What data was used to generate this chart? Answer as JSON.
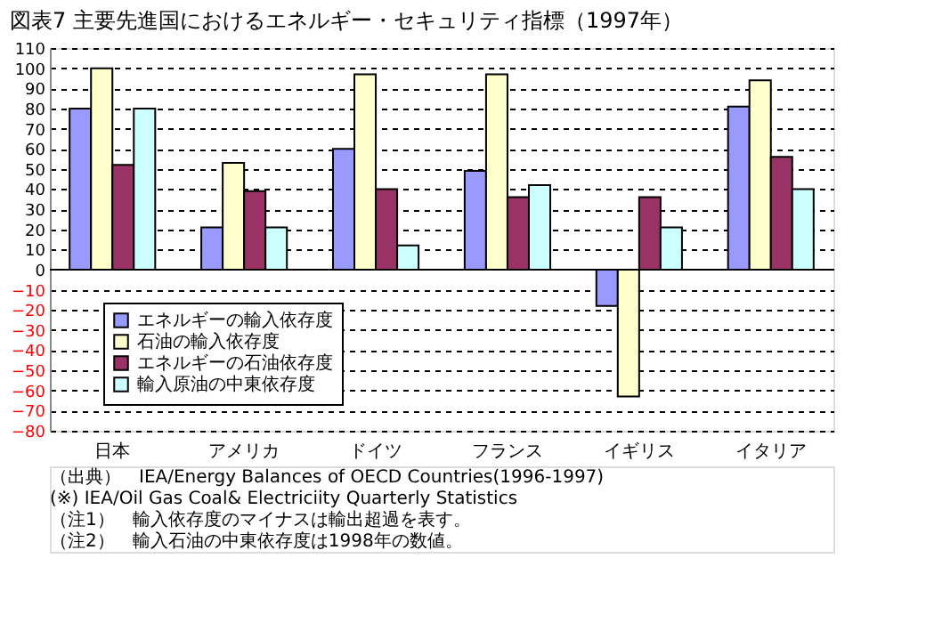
{
  "chart_data": {
    "type": "bar",
    "title": "図表7 主要先進国におけるエネルギー・セキュリティ指標（1997年）",
    "categories": [
      "日本",
      "アメリカ",
      "ドイツ",
      "フランス",
      "イギリス",
      "イタリア"
    ],
    "series": [
      {
        "name": "エネルギーの輸入依存度",
        "color": "#9999ff",
        "values": [
          80,
          21,
          60,
          49,
          -18,
          81
        ]
      },
      {
        "name": "石油の輸入依存度",
        "color": "#ffffcc",
        "values": [
          100,
          53,
          97,
          97,
          -63,
          94
        ]
      },
      {
        "name": "エネルギーの石油依存度",
        "color": "#993366",
        "values": [
          52,
          39,
          40,
          36,
          36,
          56
        ]
      },
      {
        "name": "輸入原油の中東依存度",
        "color": "#ccffff",
        "values": [
          80,
          21,
          12,
          42,
          21,
          40
        ]
      }
    ],
    "ylim": [
      -80,
      110
    ],
    "yticks": [
      -80,
      -70,
      -60,
      -50,
      -40,
      -30,
      -20,
      -10,
      0,
      10,
      20,
      30,
      40,
      50,
      60,
      70,
      80,
      90,
      100,
      110
    ],
    "grid": "y",
    "legend": "bottom left",
    "annotations": [
      "（出典）　IEA/Energy Balances of OECD Countries(1996-1997)",
      "　　　　　(※) IEA/Oil Gas Coal& Electriciity Quarterly Statistics",
      "（注1）　輸入依存度のマイナスは輸出超過を表す。",
      "（注2）　輸入石油の中東依存度は1998年の数値。"
    ]
  }
}
